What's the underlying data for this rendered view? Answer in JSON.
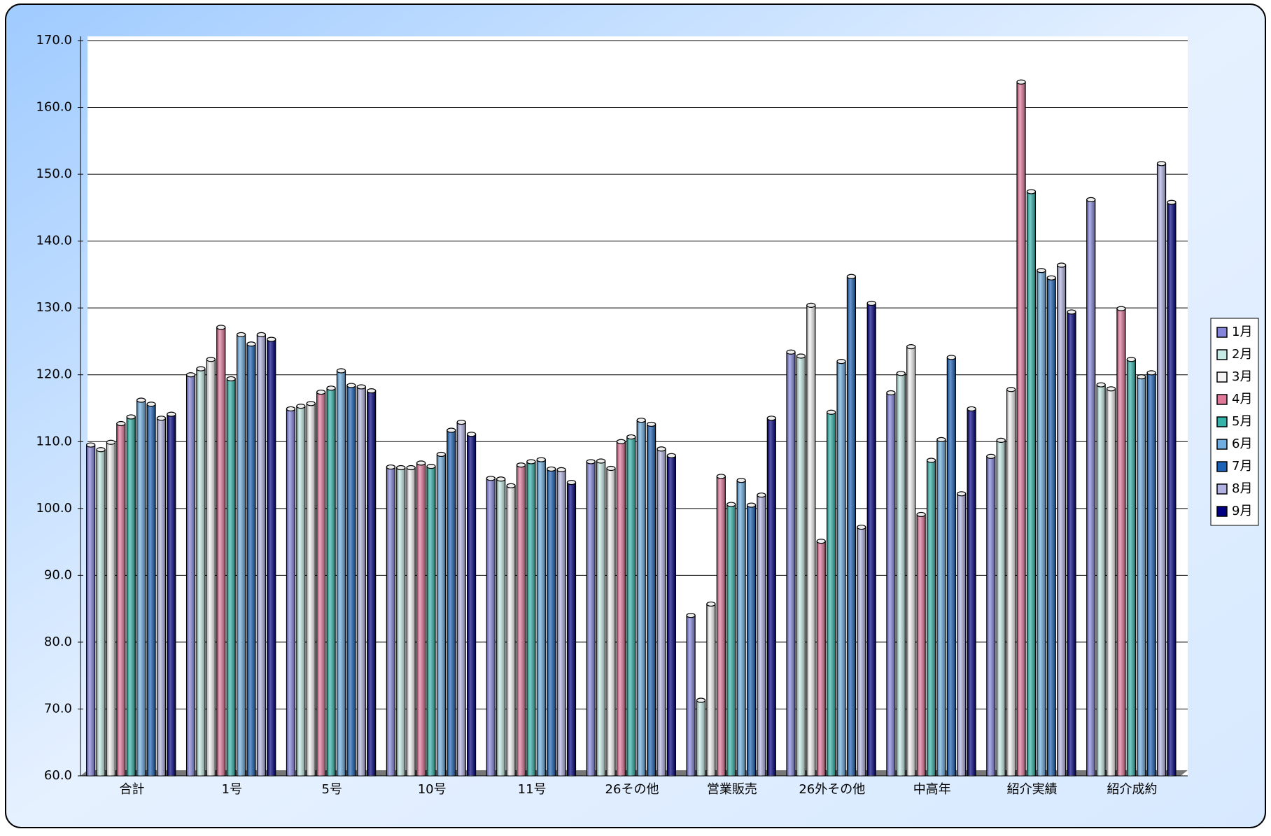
{
  "chart_data": {
    "type": "bar",
    "categories": [
      "合計",
      "1号",
      "5号",
      "10号",
      "11号",
      "26その他",
      "営業販売",
      "26外その他",
      "中高年",
      "紹介実績",
      "紹介成約"
    ],
    "series": [
      {
        "name": "1月",
        "color": "#8585dc",
        "values": [
          109.5,
          120.0,
          114.9,
          106.2,
          104.5,
          107.0,
          84.0,
          123.4,
          117.3,
          107.8,
          146.2
        ]
      },
      {
        "name": "2月",
        "color": "#c6ebe6",
        "values": [
          108.8,
          120.9,
          115.3,
          106.1,
          104.4,
          107.1,
          71.3,
          122.8,
          120.2,
          110.2,
          118.5
        ]
      },
      {
        "name": "3月",
        "color": "#f4f4f4",
        "values": [
          109.9,
          122.3,
          115.7,
          106.1,
          103.4,
          106.0,
          85.7,
          130.4,
          124.2,
          117.8,
          117.9
        ]
      },
      {
        "name": "4月",
        "color": "#e0789a",
        "values": [
          112.7,
          127.1,
          117.4,
          106.8,
          106.5,
          110.0,
          104.8,
          95.1,
          99.1,
          163.8,
          129.9
        ]
      },
      {
        "name": "5月",
        "color": "#35b3aa",
        "values": [
          113.7,
          119.4,
          118.0,
          106.3,
          107.0,
          110.7,
          100.6,
          114.4,
          107.2,
          147.4,
          122.3
        ]
      },
      {
        "name": "6月",
        "color": "#6eaee0",
        "values": [
          116.2,
          126.0,
          120.6,
          108.1,
          107.3,
          113.2,
          104.2,
          122.0,
          110.3,
          135.6,
          119.7
        ]
      },
      {
        "name": "7月",
        "color": "#1c62b6",
        "values": [
          115.6,
          124.6,
          118.4,
          111.7,
          105.9,
          112.6,
          100.5,
          134.7,
          122.6,
          134.5,
          120.3
        ]
      },
      {
        "name": "8月",
        "color": "#b2b2e2",
        "values": [
          113.5,
          126.0,
          118.2,
          112.9,
          105.8,
          108.9,
          102.0,
          97.2,
          102.2,
          136.4,
          151.6
        ]
      },
      {
        "name": "9月",
        "color": "#000080",
        "values": [
          114.1,
          125.3,
          117.6,
          111.1,
          103.9,
          107.9,
          113.5,
          130.7,
          114.9,
          129.4,
          145.8
        ]
      }
    ],
    "ylim": [
      60,
      170
    ],
    "yticks": [
      {
        "value": 60,
        "label": "60.0"
      },
      {
        "value": 70,
        "label": "70.0"
      },
      {
        "value": 80,
        "label": "80.0"
      },
      {
        "value": 90,
        "label": "90.0"
      },
      {
        "value": 100,
        "label": "100.0"
      },
      {
        "value": 110,
        "label": "110.0"
      },
      {
        "value": 120,
        "label": "120.0"
      },
      {
        "value": 130,
        "label": "130.0"
      },
      {
        "value": 140,
        "label": "140.0"
      },
      {
        "value": 150,
        "label": "150.0"
      },
      {
        "value": 160,
        "label": "160.0"
      },
      {
        "value": 170,
        "label": "170.0"
      }
    ],
    "grid": true,
    "legend": "right"
  }
}
